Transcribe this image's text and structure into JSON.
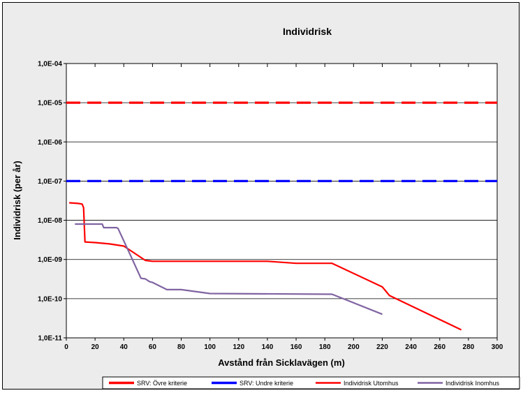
{
  "chart_data": {
    "type": "line",
    "title": "Individrisk",
    "xlabel": "Avstånd från Sicklavägen (m)",
    "ylabel": "Individrisk (per år)",
    "xlim": [
      0,
      300
    ],
    "ylim": [
      1e-11,
      0.0001
    ],
    "y_scale": "log",
    "grid": "horizontal",
    "legend_position": "bottom",
    "x_ticks": [
      0,
      20,
      40,
      60,
      80,
      100,
      120,
      140,
      160,
      180,
      200,
      220,
      240,
      260,
      280,
      300
    ],
    "x_tick_labels": [
      "0",
      "20",
      "40",
      "60",
      "80",
      "100",
      "120",
      "140",
      "160",
      "180",
      "200",
      "220",
      "240",
      "260",
      "280",
      "300"
    ],
    "y_ticks": [
      1e-11,
      1e-10,
      1e-09,
      1e-08,
      1e-07,
      1e-06,
      1e-05,
      0.0001
    ],
    "y_tick_labels": [
      "1,0E-11",
      "1,0E-10",
      "1,0E-09",
      "1,0E-08",
      "1,0E-07",
      "1,0E-06",
      "1,0E-05",
      "1,0E-04"
    ],
    "series": [
      {
        "name": "SRV: Övre kriterie",
        "style": "dashed",
        "color": "#ff0000",
        "x": [
          0,
          300
        ],
        "y": [
          1e-05,
          1e-05
        ]
      },
      {
        "name": "SRV: Undre kriterie",
        "style": "dashed",
        "color": "#0000ff",
        "x": [
          0,
          300
        ],
        "y": [
          1e-07,
          1e-07
        ]
      },
      {
        "name": "Individrisk Utomhus",
        "style": "solid",
        "color": "#ff0000",
        "x": [
          2,
          8,
          11,
          12,
          13,
          20,
          30,
          40,
          55,
          60,
          100,
          140,
          160,
          185,
          220,
          225,
          275
        ],
        "y": [
          2.8e-08,
          2.7e-08,
          2.6e-08,
          2.1e-08,
          2.8e-09,
          2.7e-09,
          2.5e-09,
          2.2e-09,
          9.5e-10,
          9e-10,
          9e-10,
          9e-10,
          8e-10,
          8e-10,
          2e-10,
          1.2e-10,
          1.6e-11
        ]
      },
      {
        "name": "Individrisk Inomhus",
        "style": "solid",
        "color": "#8064a2",
        "x": [
          6,
          10,
          25,
          26,
          35,
          36,
          45,
          52,
          55,
          58,
          60,
          70,
          80,
          100,
          185,
          220
        ],
        "y": [
          8e-09,
          8e-09,
          8e-09,
          6.5e-09,
          6.5e-09,
          6.2e-09,
          1.2e-09,
          3.3e-10,
          3.2e-10,
          2.7e-10,
          2.6e-10,
          1.7e-10,
          1.7e-10,
          1.35e-10,
          1.3e-10,
          4e-11
        ]
      }
    ]
  }
}
